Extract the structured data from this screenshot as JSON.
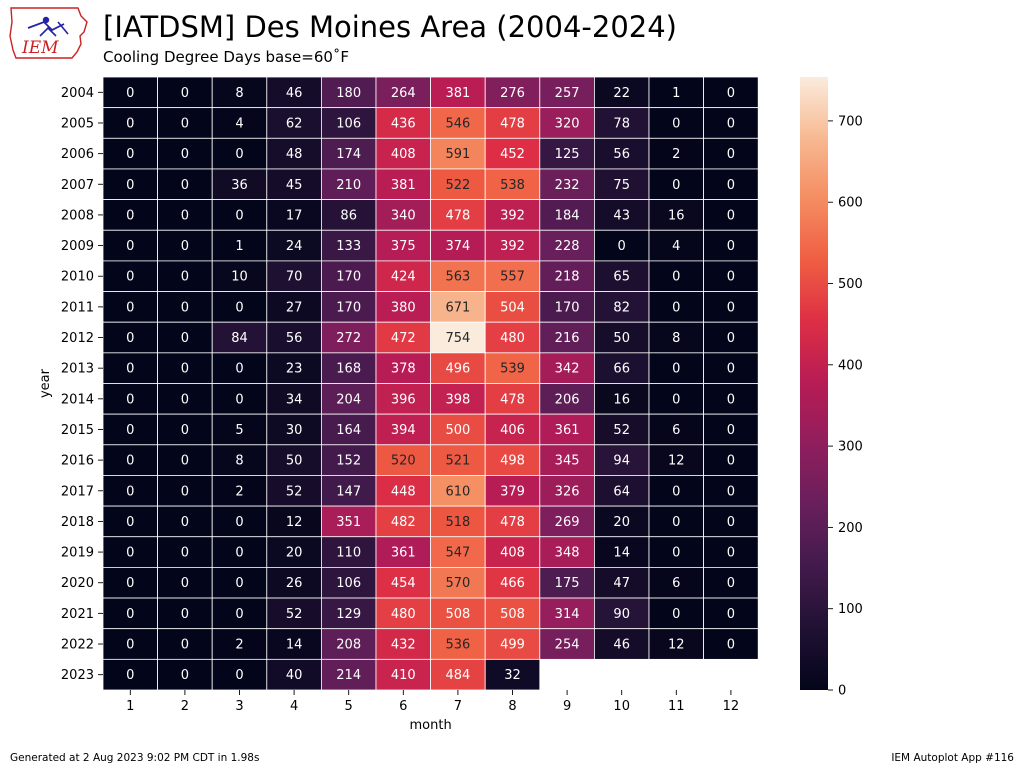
{
  "header": {
    "title": "[IATDSM] Des Moines Area (2004-2024)",
    "subtitle": "Cooling Degree Days base=60˚F",
    "logo_text": "IEM"
  },
  "footer": {
    "generated": "Generated at 2 Aug 2023 9:02 PM CDT in 1.98s",
    "app": "IEM Autoplot App #116"
  },
  "chart_data": {
    "type": "heatmap",
    "xlabel": "month",
    "ylabel": "year",
    "x": [
      1,
      2,
      3,
      4,
      5,
      6,
      7,
      8,
      9,
      10,
      11,
      12
    ],
    "y": [
      2004,
      2005,
      2006,
      2007,
      2008,
      2009,
      2010,
      2011,
      2012,
      2013,
      2014,
      2015,
      2016,
      2017,
      2018,
      2019,
      2020,
      2021,
      2022,
      2023
    ],
    "values": [
      [
        0,
        0,
        8,
        46,
        180,
        264,
        381,
        276,
        257,
        22,
        1,
        0
      ],
      [
        0,
        0,
        4,
        62,
        106,
        436,
        546,
        478,
        320,
        78,
        0,
        0
      ],
      [
        0,
        0,
        0,
        48,
        174,
        408,
        591,
        452,
        125,
        56,
        2,
        0
      ],
      [
        0,
        0,
        36,
        45,
        210,
        381,
        522,
        538,
        232,
        75,
        0,
        0
      ],
      [
        0,
        0,
        0,
        17,
        86,
        340,
        478,
        392,
        184,
        43,
        16,
        0
      ],
      [
        0,
        0,
        1,
        24,
        133,
        375,
        374,
        392,
        228,
        0,
        4,
        0
      ],
      [
        0,
        0,
        10,
        70,
        170,
        424,
        563,
        557,
        218,
        65,
        0,
        0
      ],
      [
        0,
        0,
        0,
        27,
        170,
        380,
        671,
        504,
        170,
        82,
        0,
        0
      ],
      [
        0,
        0,
        84,
        56,
        272,
        472,
        754,
        480,
        216,
        50,
        8,
        0
      ],
      [
        0,
        0,
        0,
        23,
        168,
        378,
        496,
        539,
        342,
        66,
        0,
        0
      ],
      [
        0,
        0,
        0,
        34,
        204,
        396,
        398,
        478,
        206,
        16,
        0,
        0
      ],
      [
        0,
        0,
        5,
        30,
        164,
        394,
        500,
        406,
        361,
        52,
        6,
        0
      ],
      [
        0,
        0,
        8,
        50,
        152,
        520,
        521,
        498,
        345,
        94,
        12,
        0
      ],
      [
        0,
        0,
        2,
        52,
        147,
        448,
        610,
        379,
        326,
        64,
        0,
        0
      ],
      [
        0,
        0,
        0,
        12,
        351,
        482,
        518,
        478,
        269,
        20,
        0,
        0
      ],
      [
        0,
        0,
        0,
        20,
        110,
        361,
        547,
        408,
        348,
        14,
        0,
        0
      ],
      [
        0,
        0,
        0,
        26,
        106,
        454,
        570,
        466,
        175,
        47,
        6,
        0
      ],
      [
        0,
        0,
        0,
        52,
        129,
        480,
        508,
        508,
        314,
        90,
        0,
        0
      ],
      [
        0,
        0,
        2,
        14,
        208,
        432,
        536,
        499,
        254,
        46,
        12,
        0
      ],
      [
        0,
        0,
        0,
        40,
        214,
        410,
        484,
        32,
        null,
        null,
        null,
        null
      ]
    ],
    "colorbar": {
      "min": 0,
      "max": 754,
      "ticks": [
        0,
        100,
        200,
        300,
        400,
        500,
        600,
        700
      ],
      "colormap": "rocket"
    },
    "grid": false,
    "legend": "none"
  }
}
